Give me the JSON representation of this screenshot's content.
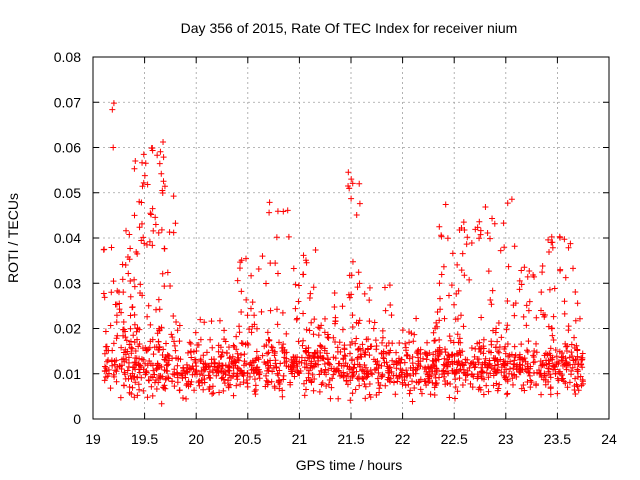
{
  "chart_data": {
    "type": "scatter",
    "title": "Day 356 of 2015, Rate Of TEC Index for receiver nium",
    "xlabel": "GPS time / hours",
    "ylabel": "ROTI / TECUs",
    "xlim": [
      19,
      24
    ],
    "ylim": [
      0,
      0.08
    ],
    "xticks": [
      19,
      19.5,
      20,
      20.5,
      21,
      21.5,
      22,
      22.5,
      23,
      23.5,
      24
    ],
    "xtick_labels": [
      "19",
      "19.5",
      "20",
      "20.5",
      "21",
      "21.5",
      "22",
      "22.5",
      "23",
      "23.5",
      "24"
    ],
    "yticks": [
      0,
      0.01,
      0.02,
      0.03,
      0.04,
      0.05,
      0.06,
      0.07,
      0.08
    ],
    "ytick_labels": [
      "0",
      "0.01",
      "0.02",
      "0.03",
      "0.04",
      "0.05",
      "0.06",
      "0.07",
      "0.08"
    ],
    "grid": true,
    "marker": "+",
    "marker_color": "#ff0000",
    "background_band": {
      "x_range": [
        19.1,
        23.75
      ],
      "baseline": 0.011,
      "spread": 0.005,
      "count": 1100
    },
    "clusters": [
      {
        "x_range": [
          19.1,
          19.25
        ],
        "y_range": [
          0.015,
          0.038
        ],
        "count": 18
      },
      {
        "x_range": [
          19.18,
          19.24
        ],
        "y_range": [
          0.06,
          0.071
        ],
        "count": 3
      },
      {
        "x_range": [
          19.25,
          19.4
        ],
        "y_range": [
          0.015,
          0.045
        ],
        "count": 35
      },
      {
        "x_range": [
          19.4,
          19.55
        ],
        "y_range": [
          0.015,
          0.059
        ],
        "count": 40
      },
      {
        "x_range": [
          19.55,
          19.7
        ],
        "y_range": [
          0.015,
          0.066
        ],
        "count": 45
      },
      {
        "x_range": [
          19.7,
          19.85
        ],
        "y_range": [
          0.012,
          0.05
        ],
        "count": 20
      },
      {
        "x_range": [
          19.85,
          20.4
        ],
        "y_range": [
          0.01,
          0.022
        ],
        "count": 40
      },
      {
        "x_range": [
          20.4,
          20.7
        ],
        "y_range": [
          0.012,
          0.037
        ],
        "count": 40
      },
      {
        "x_range": [
          20.7,
          20.95
        ],
        "y_range": [
          0.012,
          0.048
        ],
        "count": 30
      },
      {
        "x_range": [
          20.95,
          21.2
        ],
        "y_range": [
          0.012,
          0.038
        ],
        "count": 35
      },
      {
        "x_range": [
          21.2,
          21.45
        ],
        "y_range": [
          0.012,
          0.028
        ],
        "count": 30
      },
      {
        "x_range": [
          21.45,
          21.6
        ],
        "y_range": [
          0.015,
          0.056
        ],
        "count": 28
      },
      {
        "x_range": [
          21.6,
          21.9
        ],
        "y_range": [
          0.01,
          0.03
        ],
        "count": 30
      },
      {
        "x_range": [
          21.9,
          22.35
        ],
        "y_range": [
          0.01,
          0.024
        ],
        "count": 35
      },
      {
        "x_range": [
          22.35,
          22.55
        ],
        "y_range": [
          0.012,
          0.048
        ],
        "count": 35
      },
      {
        "x_range": [
          22.55,
          22.8
        ],
        "y_range": [
          0.012,
          0.045
        ],
        "count": 40
      },
      {
        "x_range": [
          22.8,
          23.1
        ],
        "y_range": [
          0.012,
          0.051
        ],
        "count": 45
      },
      {
        "x_range": [
          23.1,
          23.4
        ],
        "y_range": [
          0.01,
          0.034
        ],
        "count": 35
      },
      {
        "x_range": [
          23.4,
          23.75
        ],
        "y_range": [
          0.012,
          0.041
        ],
        "count": 45
      }
    ]
  }
}
